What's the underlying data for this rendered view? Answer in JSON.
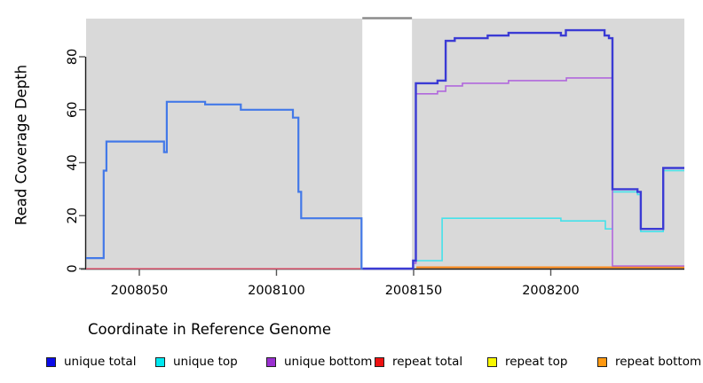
{
  "chart_data": {
    "type": "line",
    "title": "",
    "xlabel": "Coordinate in Reference Genome",
    "ylabel": "Read Coverage Depth",
    "xlim": [
      2008030.6,
      2008248.7
    ],
    "ylim": [
      0,
      94.4
    ],
    "x_ticks": [
      2008050,
      2008100,
      2008150,
      2008200
    ],
    "y_ticks": [
      0,
      20,
      40,
      60,
      80
    ],
    "grid": false,
    "plot_bg": "#D9D9D9",
    "axis_color": "#1a1a1a",
    "tick_color": "#555555",
    "gap_region": {
      "x_start": 2008131.3,
      "x_end": 2008149.4,
      "cap_color": "#8C8C8C"
    },
    "legend_position": "bottom",
    "legend": [
      {
        "label": "unique total",
        "color": "#0B0BE8"
      },
      {
        "label": "unique top",
        "color": "#00E8F0"
      },
      {
        "label": "unique bottom",
        "color": "#9A30D0"
      },
      {
        "label": "repeat total",
        "color": "#EE1111"
      },
      {
        "label": "repeat top",
        "color": "#F7F700"
      },
      {
        "label": "repeat bottom",
        "color": "#FF9912"
      }
    ],
    "series": [
      {
        "name": "repeat total",
        "legend_label": "repeat total",
        "color": "#E8647E",
        "width": 1.4,
        "visible": true,
        "points": [
          [
            2008030.6,
            0
          ],
          [
            2008131.3,
            0
          ]
        ]
      },
      {
        "name": "repeat top",
        "legend_label": "repeat top",
        "color": "#F7F700",
        "width": 1.4,
        "visible": false,
        "points": []
      },
      {
        "name": "repeat bottom",
        "legend_label": "repeat bottom",
        "color": "#FF8C1A",
        "width": 2,
        "visible": true,
        "points": [
          [
            2008151,
            0.5
          ],
          [
            2008248.7,
            0.5
          ]
        ]
      },
      {
        "name": "unique top",
        "legend_label": "unique top",
        "color": "#45E2EA",
        "width": 1.6,
        "visible": true,
        "points": [
          [
            2008149.8,
            3
          ],
          [
            2008160.4,
            19
          ],
          [
            2008203.7,
            18
          ],
          [
            2008219.9,
            15
          ],
          [
            2008222.5,
            29
          ],
          [
            2008231.6,
            28
          ],
          [
            2008232.8,
            14
          ],
          [
            2008241,
            37
          ],
          [
            2008248.7,
            37
          ]
        ]
      },
      {
        "name": "unique bottom",
        "legend_label": "unique bottom",
        "color": "#B168DC",
        "width": 1.6,
        "visible": true,
        "points": [
          [
            2008149.5,
            2
          ],
          [
            2008150.8,
            66
          ],
          [
            2008158.7,
            67
          ],
          [
            2008161.7,
            69
          ],
          [
            2008167.8,
            70
          ],
          [
            2008184.6,
            71
          ],
          [
            2008205.7,
            72
          ],
          [
            2008222.5,
            1
          ],
          [
            2008248.7,
            1
          ]
        ]
      },
      {
        "name": "unique total (left of gap)",
        "legend_label": "unique total",
        "color": "#4379E8",
        "width": 2.2,
        "visible": true,
        "points": [
          [
            2008030.6,
            4
          ],
          [
            2008037,
            37
          ],
          [
            2008038,
            48
          ],
          [
            2008059,
            44
          ],
          [
            2008060,
            63
          ],
          [
            2008074,
            62
          ],
          [
            2008087,
            60
          ],
          [
            2008106,
            57
          ],
          [
            2008108,
            29
          ],
          [
            2008109,
            19
          ],
          [
            2008131,
            0
          ],
          [
            2008131.5,
            0
          ]
        ]
      },
      {
        "name": "unique total (right of gap)",
        "legend_label": "unique total",
        "color": "#3B3BD4",
        "width": 2.4,
        "visible": true,
        "points": [
          [
            2008131.5,
            0
          ],
          [
            2008149.8,
            3
          ],
          [
            2008150.8,
            70
          ],
          [
            2008158.7,
            71
          ],
          [
            2008161.7,
            86
          ],
          [
            2008165,
            87
          ],
          [
            2008177,
            88
          ],
          [
            2008184.6,
            89
          ],
          [
            2008203.7,
            88
          ],
          [
            2008205.5,
            90
          ],
          [
            2008219.6,
            88
          ],
          [
            2008221.2,
            87
          ],
          [
            2008222.5,
            30
          ],
          [
            2008231.6,
            29
          ],
          [
            2008232.8,
            15
          ],
          [
            2008241,
            38
          ],
          [
            2008248.7,
            38
          ]
        ]
      }
    ]
  }
}
